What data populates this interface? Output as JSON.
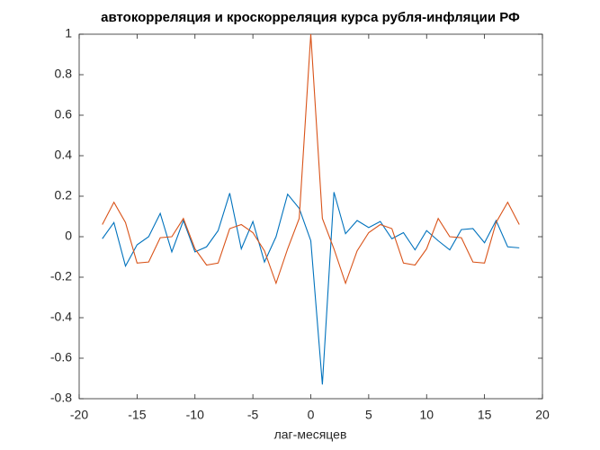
{
  "chart_data": {
    "type": "line",
    "title": "автокорреляция и кроскорреляция курса рубля-инфляции РФ",
    "x_label": "лаг-месяцев",
    "x": [
      -18,
      -17,
      -16,
      -15,
      -14,
      -13,
      -12,
      -11,
      -10,
      -9,
      -8,
      -7,
      -6,
      -5,
      -4,
      -3,
      -2,
      -1,
      0,
      1,
      2,
      3,
      4,
      5,
      6,
      7,
      8,
      9,
      10,
      11,
      12,
      13,
      14,
      15,
      16,
      17,
      18
    ],
    "series": [
      {
        "color": "#0072bd",
        "values": [
          -0.01,
          0.07,
          -0.145,
          -0.04,
          0.0,
          0.115,
          -0.075,
          0.08,
          -0.075,
          -0.05,
          0.03,
          0.215,
          -0.06,
          0.075,
          -0.125,
          0.0,
          0.21,
          0.14,
          -0.02,
          -0.73,
          0.22,
          0.015,
          0.08,
          0.045,
          0.075,
          -0.01,
          0.02,
          -0.065,
          0.03,
          -0.02,
          -0.065,
          0.035,
          0.04,
          -0.03,
          0.08,
          -0.05,
          -0.055
        ]
      },
      {
        "color": "#d95319",
        "values": [
          0.06,
          0.17,
          0.07,
          -0.13,
          -0.125,
          -0.005,
          0.0,
          0.09,
          -0.06,
          -0.14,
          -0.13,
          0.04,
          0.06,
          0.02,
          -0.07,
          -0.23,
          -0.06,
          0.09,
          1,
          0.09,
          -0.06,
          -0.23,
          -0.07,
          0.02,
          0.06,
          0.04,
          -0.13,
          -0.14,
          -0.06,
          0.09,
          0.0,
          -0.005,
          -0.125,
          -0.13,
          0.07,
          0.17,
          0.06
        ]
      }
    ],
    "xlim": [
      -20,
      20
    ],
    "xticks": [
      -20,
      -15,
      -10,
      -5,
      0,
      5,
      10,
      15,
      20
    ],
    "ylim": [
      -0.8,
      1
    ],
    "yticks": [
      -0.8,
      -0.6,
      -0.4,
      -0.2,
      0,
      0.2,
      0.4,
      0.6,
      0.8,
      1
    ],
    "box": true
  }
}
